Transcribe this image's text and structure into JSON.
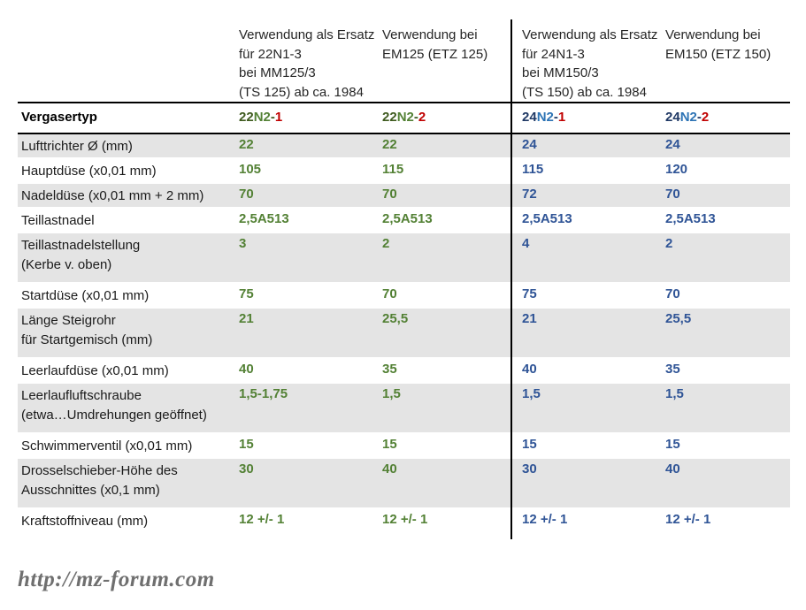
{
  "colors": {
    "dark_green": "#3f5a1f",
    "green": "#538135",
    "dark_blue": "#1f3864",
    "blue": "#2e74b5",
    "red": "#c00000",
    "green_value": "#538135",
    "blue_value": "#2f5496",
    "row_shade": "#e4e4e4"
  },
  "header": {
    "columns": [
      {
        "lines": [
          "Verwendung als Ersatz",
          "für 22N1-3",
          "bei MM125/3",
          "(TS 125) ab ca. 1984"
        ]
      },
      {
        "lines": [
          "Verwendung bei",
          "EM125 (ETZ 125)"
        ]
      },
      {
        "lines": [
          "Verwendung als Ersatz",
          "für 24N1-3",
          "bei MM150/3",
          "(TS 150) ab ca. 1984"
        ]
      },
      {
        "lines": [
          "Verwendung bei",
          "EM150 (ETZ 150)"
        ]
      }
    ]
  },
  "vergasertyp_row": {
    "label": "Vergasertyp",
    "types": [
      {
        "name": "22N2-1",
        "segments": [
          {
            "text": "22",
            "color": "dark_green"
          },
          {
            "text": "N2",
            "color": "green"
          },
          {
            "text": "-",
            "color": "dark_green"
          },
          {
            "text": "1",
            "color": "red"
          }
        ]
      },
      {
        "name": "22N2-2",
        "segments": [
          {
            "text": "22",
            "color": "dark_green"
          },
          {
            "text": "N2",
            "color": "green"
          },
          {
            "text": "-",
            "color": "dark_green"
          },
          {
            "text": "2",
            "color": "red"
          }
        ]
      },
      {
        "name": "24N2-1",
        "segments": [
          {
            "text": "24",
            "color": "dark_blue"
          },
          {
            "text": "N2",
            "color": "blue"
          },
          {
            "text": "-",
            "color": "dark_blue"
          },
          {
            "text": "1",
            "color": "red"
          }
        ]
      },
      {
        "name": "24N2-2",
        "segments": [
          {
            "text": "24",
            "color": "dark_blue"
          },
          {
            "text": "N2",
            "color": "blue"
          },
          {
            "text": "-",
            "color": "dark_blue"
          },
          {
            "text": "2",
            "color": "red"
          }
        ]
      }
    ]
  },
  "rows": [
    {
      "label_lines": [
        "Lufttrichter Ø (mm)"
      ],
      "values": [
        "22",
        "22",
        "24",
        "24"
      ],
      "shaded": true,
      "tall": false
    },
    {
      "label_lines": [
        "Hauptdüse (x0,01 mm)"
      ],
      "values": [
        "105",
        "115",
        "115",
        "120"
      ],
      "shaded": false,
      "tall": false
    },
    {
      "label_lines": [
        "Nadeldüse (x0,01 mm + 2 mm)"
      ],
      "values": [
        "70",
        "70",
        "72",
        "70"
      ],
      "shaded": true,
      "tall": false
    },
    {
      "label_lines": [
        "Teillastnadel"
      ],
      "values": [
        "2,5A513",
        "2,5A513",
        "2,5A513",
        "2,5A513"
      ],
      "shaded": false,
      "tall": false
    },
    {
      "label_lines": [
        "Teillastnadelstellung",
        "(Kerbe v. oben)"
      ],
      "values": [
        "3",
        "2",
        "4",
        "2"
      ],
      "shaded": true,
      "tall": true
    },
    {
      "label_lines": [
        "Startdüse (x0,01 mm)"
      ],
      "values": [
        "75",
        "70",
        "75",
        "70"
      ],
      "shaded": false,
      "tall": false
    },
    {
      "label_lines": [
        "Länge Steigrohr",
        "für Startgemisch (mm)"
      ],
      "values": [
        "21",
        "25,5",
        "21",
        "25,5"
      ],
      "shaded": true,
      "tall": true
    },
    {
      "label_lines": [
        "Leerlaufdüse (x0,01 mm)"
      ],
      "values": [
        "40",
        "35",
        "40",
        "35"
      ],
      "shaded": false,
      "tall": false
    },
    {
      "label_lines": [
        "Leerlaufluftschraube",
        "(etwa…Umdrehungen geöffnet)"
      ],
      "values": [
        "1,5-1,75",
        "1,5",
        "1,5",
        "1,5"
      ],
      "shaded": true,
      "tall": true
    },
    {
      "label_lines": [
        "Schwimmerventil (x0,01 mm)"
      ],
      "values": [
        "15",
        "15",
        "15",
        "15"
      ],
      "shaded": false,
      "tall": false
    },
    {
      "label_lines": [
        "Drosselschieber-Höhe des",
        "Ausschnittes (x0,1 mm)"
      ],
      "values": [
        "30",
        "40",
        "30",
        "40"
      ],
      "shaded": true,
      "tall": true
    },
    {
      "label_lines": [
        "Kraftstoffniveau (mm)"
      ],
      "values": [
        "12 +/- 1",
        "12 +/- 1",
        "12 +/- 1",
        "12 +/- 1"
      ],
      "shaded": false,
      "tall": false,
      "last": true
    }
  ],
  "watermark": {
    "text": "http://mz-forum.com"
  }
}
